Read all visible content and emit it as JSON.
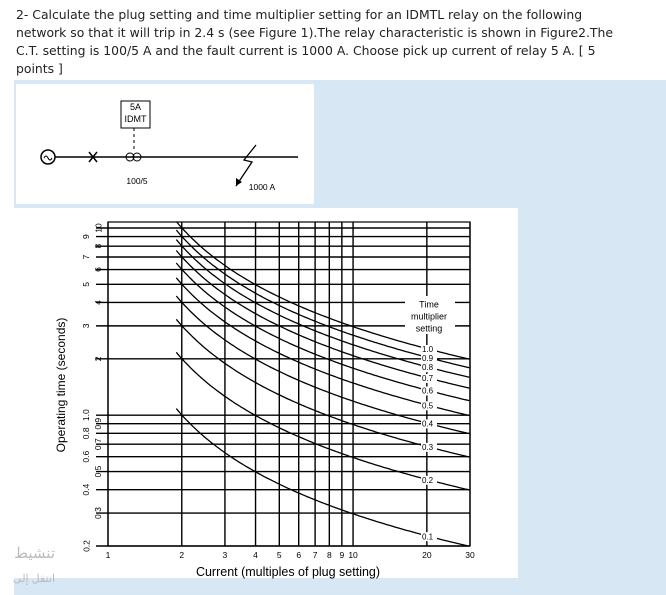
{
  "question": {
    "lines": [
      "2- Calculate the plug setting and time multiplier setting for an IDMTL relay on the following",
      "network so that it will trip in 2.4 s (see Figure 1).The relay characteristic is shown in Figure2.The",
      "C.T. setting is 100/5 A and the fault current is 1000 A. Choose pick up current of relay 5 A.    [ 5",
      "points ]"
    ]
  },
  "figure1": {
    "relay_label": [
      "5A",
      "IDMT"
    ],
    "ct_label": "100/5",
    "fault_label": "1000 A"
  },
  "figure2": {
    "ylabel": "Operating time (seconds)",
    "xlabel": "Current (multiples of plug setting)",
    "legend_title": [
      "Time",
      "multiplier",
      "setting"
    ],
    "log": true,
    "xlim": [
      1,
      30
    ],
    "ylim": [
      0.2,
      10
    ],
    "xticks": [
      1,
      2,
      3,
      4,
      5,
      6,
      7,
      8,
      9,
      10,
      20,
      30
    ],
    "xtick_labels": [
      "1",
      "2",
      "3",
      "4",
      "5",
      "6",
      "7",
      "8",
      "9",
      "10",
      "20",
      "30"
    ],
    "yticks": [
      0.2,
      0.3,
      0.4,
      0.5,
      0.6,
      0.7,
      0.8,
      0.9,
      {
        "value": 1,
        "label": "1.0"
      },
      2,
      3,
      4,
      5,
      6,
      7,
      8,
      9,
      10
    ],
    "curves": [
      {
        "value": 1,
        "label": "1.0"
      },
      0.9,
      0.8,
      0.7,
      0.6,
      0.5,
      0.4,
      0.3,
      0.2,
      0.1
    ]
  },
  "watermark": [
    "تنشيط",
    "انتقل إلى"
  ]
}
